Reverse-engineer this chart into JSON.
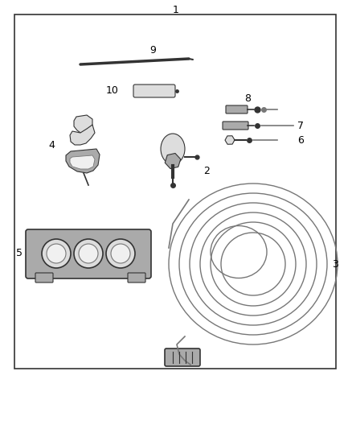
{
  "bg_color": "#ffffff",
  "border_color": "#222222",
  "fig_width": 4.38,
  "fig_height": 5.33,
  "dpi": 100,
  "dark_gray": "#333333",
  "med_gray": "#777777",
  "light_gray": "#aaaaaa",
  "very_light_gray": "#dddddd",
  "near_white": "#f0f0f0"
}
